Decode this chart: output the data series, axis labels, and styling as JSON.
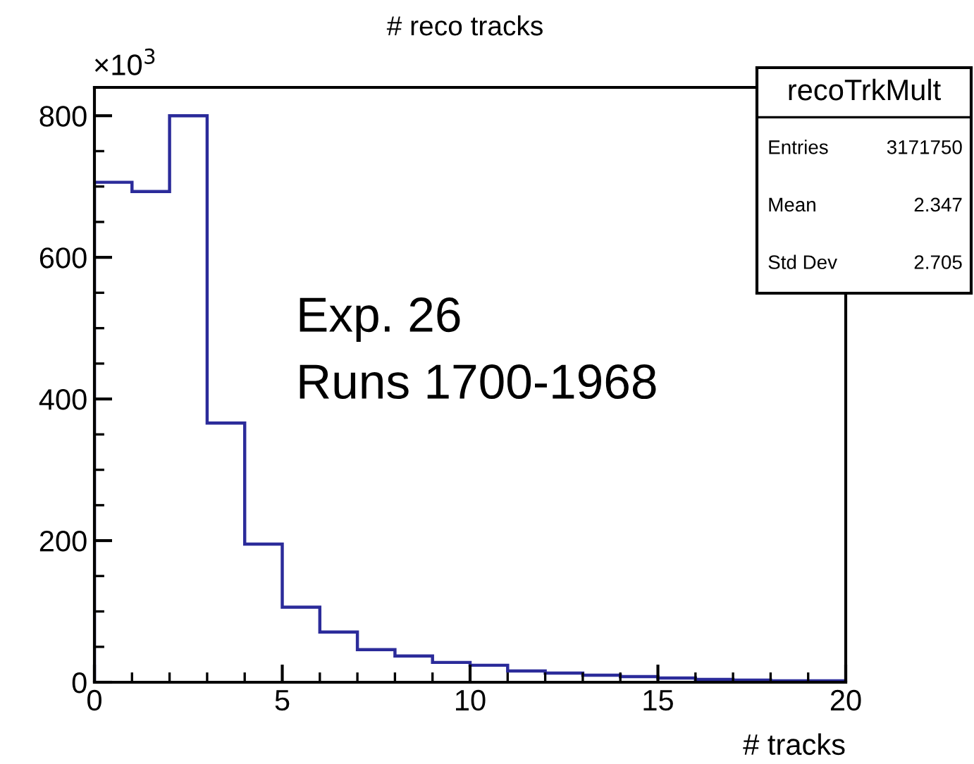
{
  "chart_data": {
    "type": "histogram",
    "title": "# reco tracks",
    "xlabel": "# tracks",
    "bins": [
      0,
      1,
      2,
      3,
      4,
      5,
      6,
      7,
      8,
      9,
      10,
      11,
      12,
      13,
      14,
      15,
      16,
      17,
      18,
      19,
      20
    ],
    "values": [
      706,
      693,
      800,
      366,
      195,
      106,
      71,
      46,
      37,
      28,
      24,
      16,
      13,
      10,
      8,
      6,
      4,
      3,
      2,
      2
    ],
    "color": "#2b2b9a",
    "xlim": [
      0,
      20
    ],
    "xticks": [
      0,
      5,
      10,
      15,
      20
    ],
    "ylim": [
      0,
      840
    ],
    "yticks": [
      0,
      200,
      400,
      600,
      800
    ],
    "grid": false,
    "annotations": [
      "×10$^{3}$",
      "Exp. 26\nRuns 1700-1968",
      "recoTrkMult",
      "Entries",
      "3171750",
      "Mean",
      "2.347",
      "Std Dev",
      "2.705"
    ]
  }
}
